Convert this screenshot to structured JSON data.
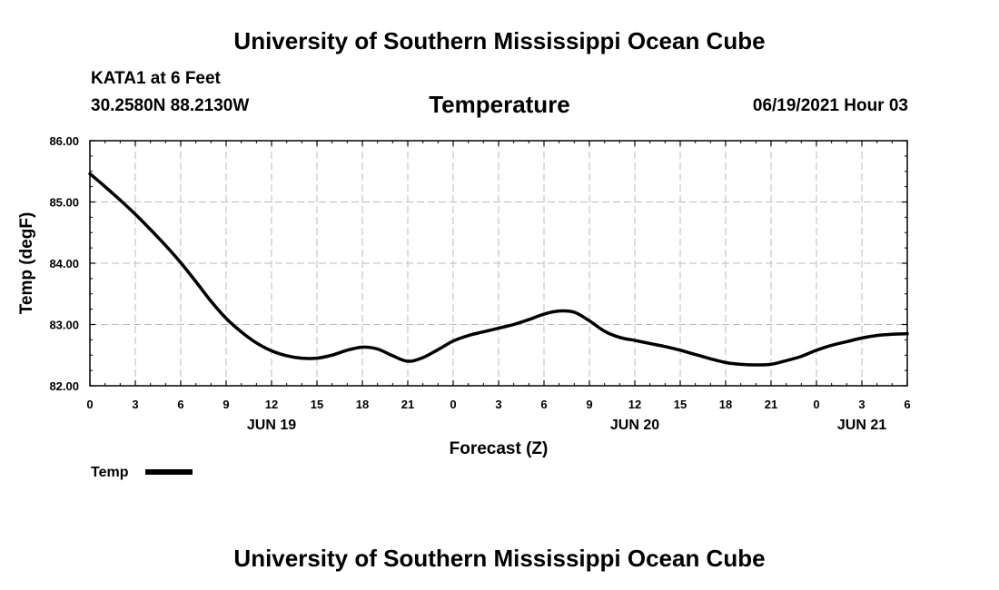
{
  "header": {
    "title_top": "University of Southern Mississippi Ocean Cube",
    "station": "KATA1 at 6 Feet",
    "coords": "30.2580N  88.2130W",
    "variable": "Temperature",
    "timestamp": "06/19/2021 Hour 03"
  },
  "footer": {
    "title_bottom": "University of Southern Mississippi Ocean Cube"
  },
  "legend": {
    "label": "Temp"
  },
  "chart_data": {
    "type": "line",
    "xlabel": "Forecast (Z)",
    "ylabel": "Temp (degF)",
    "xlim": [
      0,
      54
    ],
    "ylim": [
      82.0,
      86.0
    ],
    "x_ticks": [
      0,
      3,
      6,
      9,
      12,
      15,
      18,
      21,
      24,
      27,
      30,
      33,
      36,
      39,
      42,
      45,
      48,
      51,
      54
    ],
    "x_tick_labels": [
      "0",
      "3",
      "6",
      "9",
      "12",
      "15",
      "18",
      "21",
      "0",
      "3",
      "6",
      "9",
      "12",
      "15",
      "18",
      "21",
      "0",
      "3",
      "6"
    ],
    "y_ticks": [
      82.0,
      83.0,
      84.0,
      85.0,
      86.0
    ],
    "y_tick_labels": [
      "82.00",
      "83.00",
      "84.00",
      "85.00",
      "86.00"
    ],
    "date_labels": [
      {
        "at": 12,
        "label": "JUN 19"
      },
      {
        "at": 36,
        "label": "JUN 20"
      },
      {
        "at": 51,
        "label": "JUN 21"
      }
    ],
    "grid": true,
    "line_color": "#000000",
    "grid_color": "#bbbbbb",
    "series": [
      {
        "name": "Temp",
        "x": [
          0,
          1,
          2,
          3,
          4,
          5,
          6,
          7,
          8,
          9,
          10,
          11,
          12,
          13,
          14,
          15,
          16,
          17,
          18,
          19,
          20,
          21,
          22,
          23,
          24,
          25,
          26,
          27,
          28,
          29,
          30,
          31,
          32,
          33,
          34,
          35,
          36,
          37,
          38,
          39,
          40,
          41,
          42,
          43,
          44,
          45,
          46,
          47,
          48,
          49,
          50,
          51,
          52,
          53,
          54
        ],
        "values": [
          85.46,
          85.25,
          85.03,
          84.8,
          84.55,
          84.29,
          84.01,
          83.7,
          83.38,
          83.1,
          82.88,
          82.7,
          82.57,
          82.49,
          82.45,
          82.45,
          82.5,
          82.58,
          82.63,
          82.6,
          82.49,
          82.4,
          82.46,
          82.59,
          82.73,
          82.82,
          82.88,
          82.94,
          83.0,
          83.08,
          83.17,
          83.22,
          83.2,
          83.06,
          82.89,
          82.79,
          82.74,
          82.69,
          82.64,
          82.58,
          82.51,
          82.44,
          82.38,
          82.35,
          82.34,
          82.35,
          82.41,
          82.48,
          82.58,
          82.66,
          82.72,
          82.78,
          82.82,
          82.84,
          82.85
        ]
      }
    ]
  }
}
